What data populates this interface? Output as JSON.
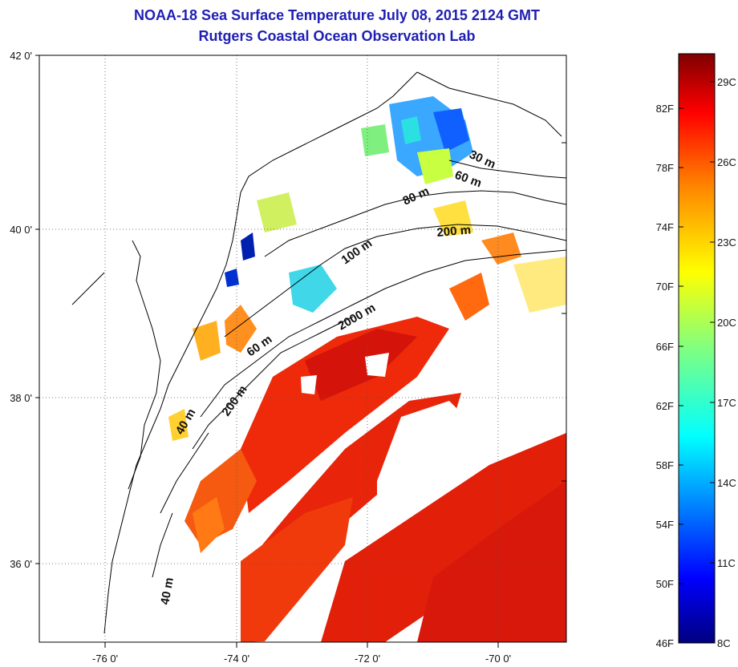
{
  "title": {
    "line1": "NOAA-18 Sea Surface Temperature July 08, 2015 2124 GMT",
    "line2": "Rutgers Coastal Ocean Observation Lab"
  },
  "map": {
    "lat_ticks": [
      "42 0'",
      "40 0'",
      "38 0'",
      "36 0'"
    ],
    "lon_ticks": [
      "-76 0'",
      "-74 0'",
      "-72 0'",
      "-70 0'"
    ],
    "isobaths": [
      "30 m",
      "60 m",
      "80 m",
      "200 m",
      "100 m",
      "2000 m",
      "60 m",
      "200 m",
      "40 m",
      "40 m"
    ]
  },
  "colorbar": {
    "f_labels": [
      "82F",
      "78F",
      "74F",
      "70F",
      "66F",
      "62F",
      "58F",
      "54F",
      "50F",
      "46F"
    ],
    "c_labels": [
      "29C",
      "26C",
      "23C",
      "20C",
      "17C",
      "14C",
      "11C",
      "8C"
    ],
    "colors": [
      "#00007f",
      "#0000ff",
      "#0080ff",
      "#00ffff",
      "#80ff80",
      "#ffff00",
      "#ff8000",
      "#ff0000",
      "#7f0000"
    ]
  }
}
